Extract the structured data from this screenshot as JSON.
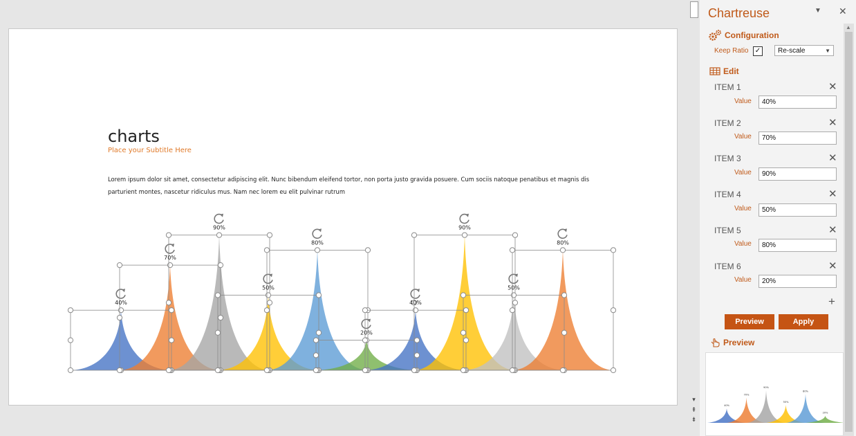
{
  "slide": {
    "title": "charts",
    "subtitle": "Place your Subtitle Here",
    "body": "Lorem ipsum dolor sit amet, consectetur adipiscing elit. Nunc bibendum eleifend tortor, non porta justo gravida posuere. Cum sociis natoque penatibus et magnis dis parturient montes, nascetur ridiculus mus. Nam nec lorem eu elit pulvinar rutrum"
  },
  "chart_data": {
    "type": "area",
    "values": [
      40,
      70,
      90,
      50,
      80,
      20,
      40,
      90,
      50,
      80
    ],
    "labels": [
      "40%",
      "70%",
      "90%",
      "50%",
      "80%",
      "20%",
      "40%",
      "90%",
      "50%",
      "80%"
    ],
    "colors": [
      "#4472c4",
      "#ed7d31",
      "#a5a5a5",
      "#ffc000",
      "#5b9bd5",
      "#70ad47",
      "#4472c4",
      "#ffc000",
      "#c0c0c0",
      "#ed7d31"
    ],
    "ylim": [
      0,
      100
    ]
  },
  "panel": {
    "title": "Chartreuse",
    "menu_icon": "triangle-down-icon",
    "close_icon": "close-icon",
    "configuration_label": "Configuration",
    "keep_ratio_label": "Keep Ratio",
    "keep_ratio_checked": "✓",
    "rescale_value": "Re-scale",
    "edit_label": "Edit",
    "value_label": "Value",
    "items": [
      {
        "label": "ITEM 1",
        "value": "40%"
      },
      {
        "label": "ITEM 2",
        "value": "70%"
      },
      {
        "label": "ITEM 3",
        "value": "90%"
      },
      {
        "label": "ITEM 4",
        "value": "50%"
      },
      {
        "label": "ITEM 5",
        "value": "80%"
      },
      {
        "label": "ITEM 6",
        "value": "20%"
      }
    ],
    "preview_button": "Preview",
    "apply_button": "Apply",
    "preview_label": "Preview",
    "accent_color": "#c55414"
  }
}
